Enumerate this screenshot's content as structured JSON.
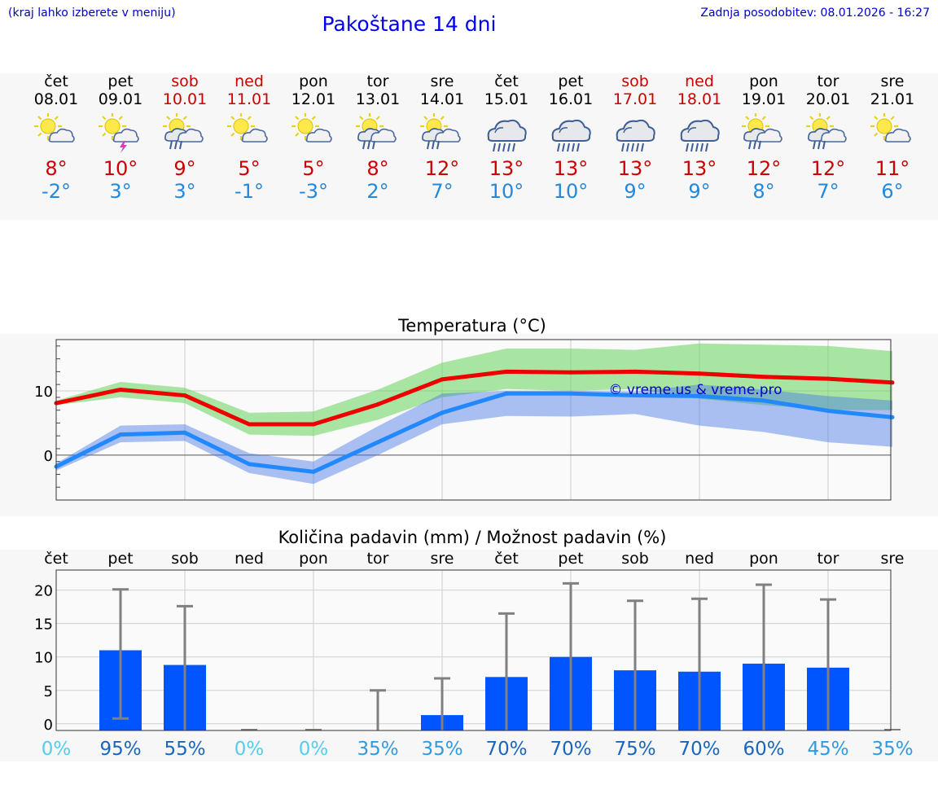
{
  "header": {
    "hint": "(kraj lahko izberete v meniju)",
    "title": "Pakoštane 14 dni",
    "updated": "Zadnja posodobitev: 08.01.2026 - 16:27"
  },
  "days": [
    {
      "name": "čet",
      "date": "08.01",
      "weekend": false,
      "icon": "sun-cloud-icon",
      "tmax": "8°",
      "tmin": "-2°"
    },
    {
      "name": "pet",
      "date": "09.01",
      "weekend": false,
      "icon": "sun-cloud-thunder-icon",
      "tmax": "10°",
      "tmin": "3°"
    },
    {
      "name": "sob",
      "date": "10.01",
      "weekend": true,
      "icon": "sun-cloud-rain-icon",
      "tmax": "9°",
      "tmin": "3°"
    },
    {
      "name": "ned",
      "date": "11.01",
      "weekend": true,
      "icon": "sun-cloud-icon",
      "tmax": "5°",
      "tmin": "-1°"
    },
    {
      "name": "pon",
      "date": "12.01",
      "weekend": false,
      "icon": "sun-cloud-icon",
      "tmax": "5°",
      "tmin": "-3°"
    },
    {
      "name": "tor",
      "date": "13.01",
      "weekend": false,
      "icon": "sun-cloud-rain-icon",
      "tmax": "8°",
      "tmin": "2°"
    },
    {
      "name": "sre",
      "date": "14.01",
      "weekend": false,
      "icon": "sun-cloud-rain-icon",
      "tmax": "12°",
      "tmin": "7°"
    },
    {
      "name": "čet",
      "date": "15.01",
      "weekend": false,
      "icon": "cloud-rain-icon",
      "tmax": "13°",
      "tmin": "10°"
    },
    {
      "name": "pet",
      "date": "16.01",
      "weekend": false,
      "icon": "cloud-rain-icon",
      "tmax": "13°",
      "tmin": "10°"
    },
    {
      "name": "sob",
      "date": "17.01",
      "weekend": true,
      "icon": "cloud-rain-icon",
      "tmax": "13°",
      "tmin": "9°"
    },
    {
      "name": "ned",
      "date": "18.01",
      "weekend": true,
      "icon": "cloud-rain-icon",
      "tmax": "13°",
      "tmin": "9°"
    },
    {
      "name": "pon",
      "date": "19.01",
      "weekend": false,
      "icon": "sun-cloud-rain-icon",
      "tmax": "12°",
      "tmin": "8°"
    },
    {
      "name": "tor",
      "date": "20.01",
      "weekend": false,
      "icon": "sun-cloud-rain-icon",
      "tmax": "12°",
      "tmin": "7°"
    },
    {
      "name": "sre",
      "date": "21.01",
      "weekend": false,
      "icon": "sun-cloud-icon",
      "tmax": "11°",
      "tmin": "6°"
    }
  ],
  "colors": {
    "weekend": "#cc0000",
    "weekday": "#000000",
    "max": "#ee0000",
    "min": "#2288ff",
    "precip": "#0055ff"
  },
  "chart_data": [
    {
      "type": "line",
      "title": "Temperatura (°C)",
      "watermark": "© vreme.us & vreme.pro",
      "categories": [
        "čet",
        "pet",
        "sob",
        "ned",
        "pon",
        "tor",
        "sre",
        "čet",
        "pet",
        "sob",
        "ned",
        "pon",
        "tor",
        "sre"
      ],
      "ylim": [
        -7,
        18
      ],
      "yticks": [
        0,
        10
      ],
      "series": [
        {
          "name": "max",
          "values": [
            8.1,
            10.2,
            9.3,
            4.8,
            4.8,
            7.9,
            11.8,
            13.0,
            12.9,
            13.0,
            12.7,
            12.2,
            11.9,
            11.3
          ],
          "band_low": [
            7.8,
            9.0,
            8.1,
            3.2,
            3.0,
            5.5,
            9.0,
            10.3,
            10.0,
            10.3,
            8.8,
            7.8,
            7.0,
            7.0
          ],
          "band_high": [
            8.5,
            11.4,
            10.5,
            6.6,
            6.8,
            10.2,
            14.4,
            16.6,
            16.6,
            16.4,
            17.4,
            17.2,
            17.0,
            16.2
          ]
        },
        {
          "name": "min",
          "values": [
            -1.8,
            3.2,
            3.5,
            -1.4,
            -2.6,
            2.0,
            6.6,
            9.6,
            9.6,
            9.3,
            9.2,
            8.5,
            6.9,
            5.9
          ],
          "band_low": [
            -2.4,
            2.0,
            2.2,
            -2.8,
            -4.5,
            0.0,
            4.8,
            6.1,
            6.0,
            6.4,
            4.6,
            3.6,
            2.0,
            1.3
          ],
          "band_high": [
            -1.3,
            4.6,
            4.8,
            0.3,
            -1.0,
            4.5,
            9.6,
            10.0,
            10.0,
            9.9,
            11.0,
            10.2,
            9.2,
            8.5
          ]
        }
      ]
    },
    {
      "type": "bar",
      "title": "Količina padavin (mm) / Možnost padavin (%)",
      "categories": [
        "čet",
        "pet",
        "sob",
        "ned",
        "pon",
        "tor",
        "sre",
        "čet",
        "pet",
        "sob",
        "ned",
        "pon",
        "tor",
        "sre"
      ],
      "ylim": [
        -1,
        23
      ],
      "yticks": [
        0,
        5,
        10,
        15,
        20
      ],
      "values": [
        0,
        11,
        8.8,
        0,
        0,
        0,
        1.3,
        7.0,
        10.0,
        8.0,
        7.8,
        9.0,
        8.4,
        0
      ],
      "err_low": [
        0,
        0.8,
        0,
        0,
        0,
        0,
        0,
        0,
        0,
        0,
        0,
        0,
        0,
        0
      ],
      "err_high": [
        0,
        20.1,
        17.6,
        0,
        0,
        5.0,
        6.8,
        16.5,
        21.0,
        18.4,
        18.7,
        20.8,
        18.6,
        0
      ],
      "probability": [
        "0%",
        "95%",
        "55%",
        "0%",
        "0%",
        "35%",
        "35%",
        "70%",
        "70%",
        "75%",
        "70%",
        "60%",
        "45%",
        "35%"
      ]
    }
  ]
}
